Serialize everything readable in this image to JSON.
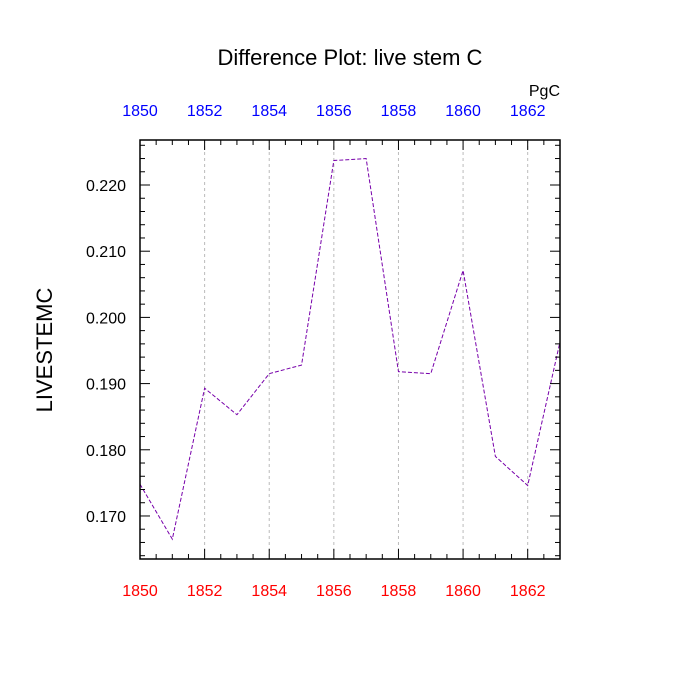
{
  "chart_data": {
    "type": "line",
    "title": "Difference Plot: live stem C",
    "ylabel": "LIVESTEMC",
    "units": "PgC",
    "xlim": [
      1850,
      1863
    ],
    "ylim": [
      0.1635,
      0.2268
    ],
    "xticks": [
      1850,
      1852,
      1854,
      1856,
      1858,
      1860,
      1862
    ],
    "xtick_labels": [
      "1850",
      "1852",
      "1854",
      "1856",
      "1858",
      "1860",
      "1862"
    ],
    "yticks": [
      0.17,
      0.18,
      0.19,
      0.2,
      0.21,
      0.22
    ],
    "ytick_labels": [
      "0.170",
      "0.180",
      "0.190",
      "0.200",
      "0.210",
      "0.220"
    ],
    "grid_x": true,
    "grid_y": false,
    "bottom_tick_color": "#ff0000",
    "top_tick_color": "#0000ff",
    "series": [
      {
        "color": "#7700aa",
        "x": [
          1850,
          1851,
          1852,
          1853,
          1854,
          1855,
          1856,
          1857,
          1858,
          1859,
          1860,
          1861,
          1862,
          1863
        ],
        "values": [
          0.1748,
          0.1665,
          0.1893,
          0.1853,
          0.1915,
          0.1928,
          0.2237,
          0.224,
          0.1918,
          0.1915,
          0.2071,
          0.179,
          0.1746,
          0.1963
        ]
      }
    ]
  }
}
